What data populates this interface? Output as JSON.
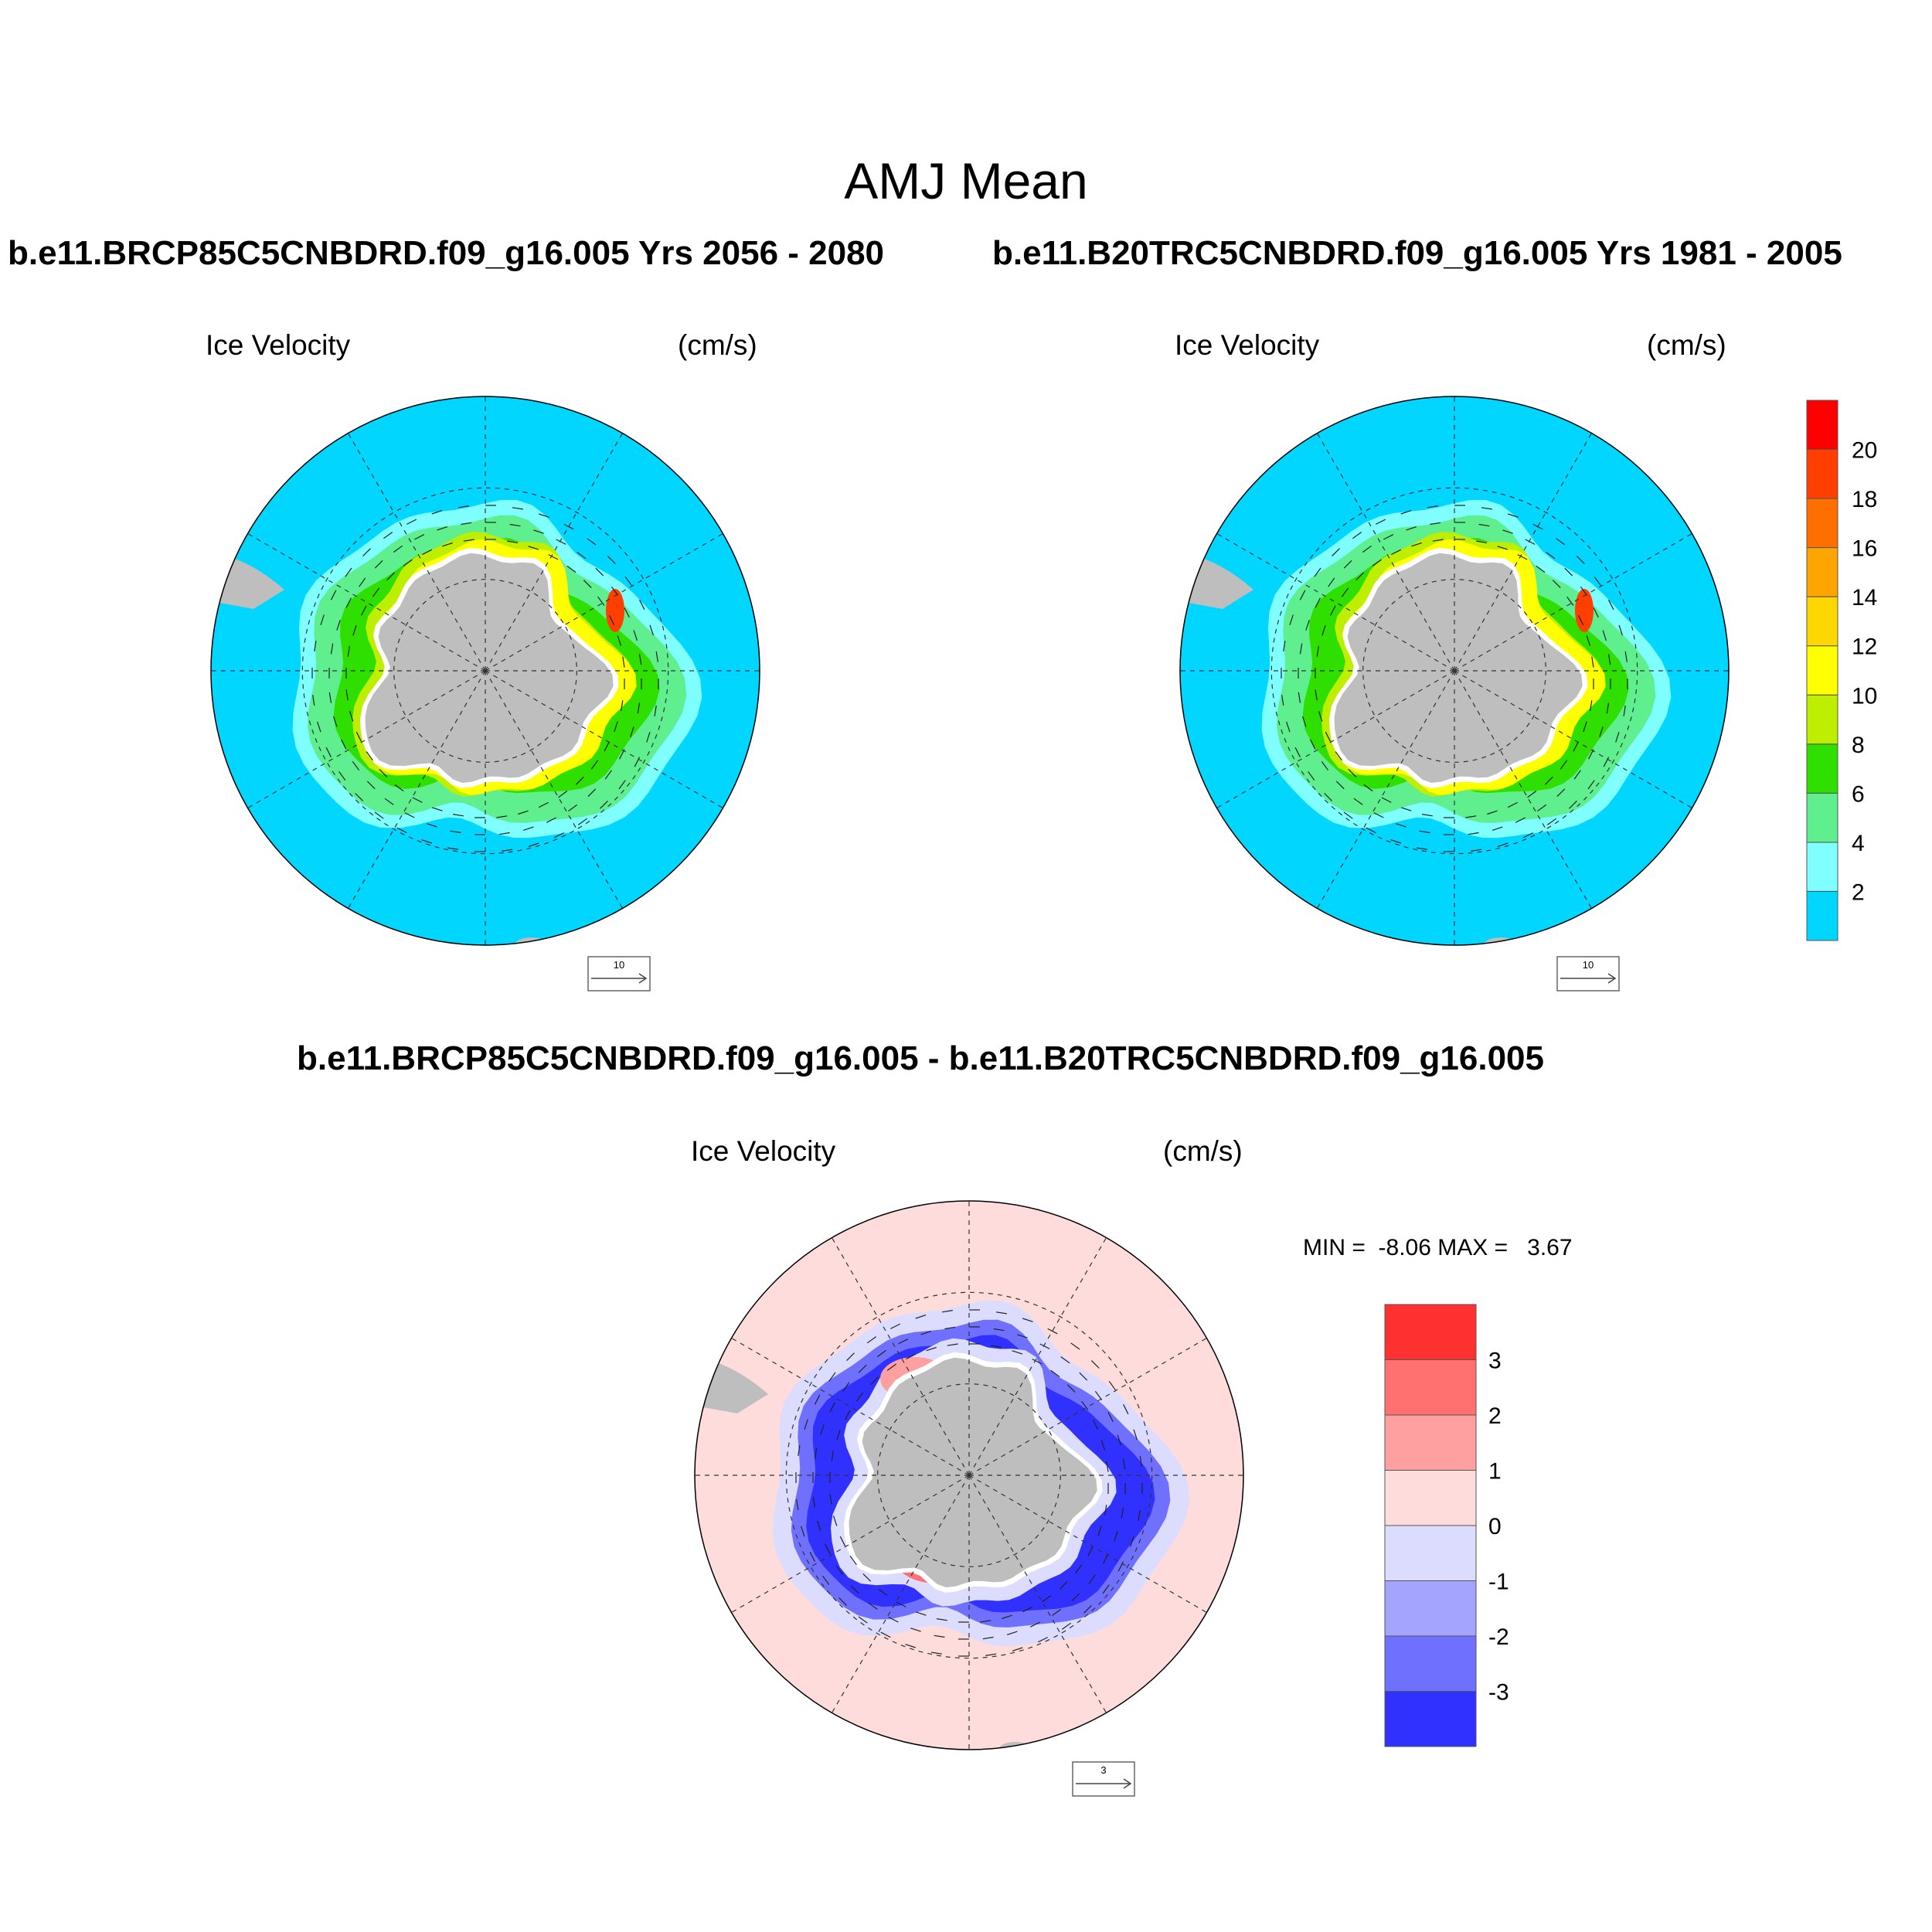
{
  "title": "AMJ Mean",
  "header_left": "b.e11.BRCP85C5CNBDRD.f09_g16.005  Yrs 2056 - 2080",
  "header_right": "b.e11.B20TRC5CNBDRD.f09_g16.005  Yrs 1981 - 2005",
  "diff_header": "b.e11.BRCP85C5CNBDRD.f09_g16.005 - b.e11.B20TRC5CNBDRD.f09_g16.005",
  "panels": [
    {
      "label": "Ice Velocity",
      "units": "(cm/s)",
      "ref_vector": "10"
    },
    {
      "label": "Ice Velocity",
      "units": "(cm/s)",
      "ref_vector": "10"
    },
    {
      "label": "Ice Velocity",
      "units": "(cm/s)",
      "ref_vector": "3"
    }
  ],
  "diff_stats": {
    "min_label": "MIN =",
    "min": "-8.06",
    "max_label": "MAX =",
    "max": "3.67"
  },
  "colorbar_top": {
    "ticks": [
      "2",
      "4",
      "6",
      "8",
      "10",
      "12",
      "14",
      "16",
      "18",
      "20"
    ],
    "colors": [
      "#00d6ff",
      "#7fffff",
      "#5fef8f",
      "#2fdf00",
      "#bfef00",
      "#ffff00",
      "#ffd700",
      "#ffa500",
      "#ff6f00",
      "#ff3f00",
      "#ff0000"
    ]
  },
  "colorbar_diff": {
    "ticks": [
      "-3",
      "-2",
      "-1",
      "0",
      "1",
      "2",
      "3"
    ],
    "colors": [
      "#3030ff",
      "#7070ff",
      "#a4a4ff",
      "#dcdcff",
      "#ffdcdc",
      "#ffa0a0",
      "#ff7070",
      "#ff3030"
    ]
  },
  "map_colors": {
    "ocean_speed": "#00d6ff",
    "ocean_diff": "#ffdcdc",
    "land": "#bebebe"
  }
}
